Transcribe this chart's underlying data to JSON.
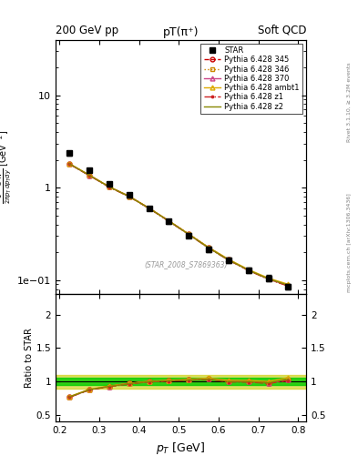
{
  "title_top_left": "200 GeV pp",
  "title_top_right": "Soft QCD",
  "plot_title": "pT(π⁺)",
  "xlabel": "p_{T} [GeV]",
  "ylabel_parts": [
    "$\\frac{1}{2\\pi p_T}\\frac{d^2N}{dp_T dy}$",
    "[GeV$^{-2}$]"
  ],
  "ratio_ylabel": "Ratio to STAR",
  "watermark": "(STAR_2008_S7869363)",
  "right_label_top": "Rivet 3.1.10, ≥ 3.2M events",
  "right_label_bottom": "mcplots.cern.ch [arXiv:1306.3436]",
  "pt_star": [
    0.225,
    0.275,
    0.325,
    0.375,
    0.425,
    0.475,
    0.525,
    0.575,
    0.625,
    0.675,
    0.725,
    0.775
  ],
  "y_star": [
    2.35,
    1.55,
    1.1,
    0.83,
    0.6,
    0.43,
    0.305,
    0.215,
    0.165,
    0.128,
    0.105,
    0.085
  ],
  "y_star_err": [
    0.12,
    0.08,
    0.05,
    0.04,
    0.03,
    0.022,
    0.018,
    0.014,
    0.011,
    0.008,
    0.008,
    0.006
  ],
  "pt_mc": [
    0.225,
    0.275,
    0.325,
    0.375,
    0.425,
    0.475,
    0.525,
    0.575,
    0.625,
    0.675,
    0.725,
    0.775
  ],
  "series": [
    {
      "label": "Pythia 6.428 345",
      "color": "#cc0000",
      "linestyle": "--",
      "marker": "o",
      "markerfacecolor": "none",
      "values": [
        1.8,
        1.36,
        1.02,
        0.805,
        0.6,
        0.436,
        0.313,
        0.224,
        0.166,
        0.128,
        0.103,
        0.087
      ]
    },
    {
      "label": "Pythia 6.428 346",
      "color": "#cc8800",
      "linestyle": ":",
      "marker": "s",
      "markerfacecolor": "none",
      "values": [
        1.8,
        1.36,
        1.02,
        0.805,
        0.6,
        0.436,
        0.313,
        0.224,
        0.166,
        0.128,
        0.103,
        0.087
      ]
    },
    {
      "label": "Pythia 6.428 370",
      "color": "#cc4488",
      "linestyle": "-",
      "marker": "^",
      "markerfacecolor": "none",
      "values": [
        1.8,
        1.36,
        1.02,
        0.805,
        0.6,
        0.436,
        0.313,
        0.224,
        0.166,
        0.128,
        0.103,
        0.087
      ]
    },
    {
      "label": "Pythia 6.428 ambt1",
      "color": "#ddaa00",
      "linestyle": "-",
      "marker": "^",
      "markerfacecolor": "none",
      "values": [
        1.82,
        1.37,
        1.025,
        0.808,
        0.602,
        0.438,
        0.315,
        0.226,
        0.168,
        0.13,
        0.105,
        0.09
      ]
    },
    {
      "label": "Pythia 6.428 z1",
      "color": "#cc2222",
      "linestyle": "-.",
      "marker": ".",
      "markerfacecolor": "#cc2222",
      "values": [
        1.8,
        1.355,
        1.015,
        0.8,
        0.597,
        0.433,
        0.311,
        0.222,
        0.164,
        0.127,
        0.102,
        0.086
      ]
    },
    {
      "label": "Pythia 6.428 z2",
      "color": "#888800",
      "linestyle": "-",
      "marker": null,
      "markerfacecolor": null,
      "values": [
        1.81,
        1.36,
        1.02,
        0.803,
        0.599,
        0.435,
        0.312,
        0.223,
        0.165,
        0.128,
        0.103,
        0.088
      ]
    }
  ],
  "ratio_band_inner_color": "#00cc00",
  "ratio_band_outer_color": "#cccc00",
  "ratio_band_inner": 0.05,
  "ratio_band_outer": 0.1,
  "ylim_main": [
    0.07,
    40
  ],
  "ylim_ratio": [
    0.4,
    2.3
  ],
  "xlim": [
    0.19,
    0.82
  ]
}
